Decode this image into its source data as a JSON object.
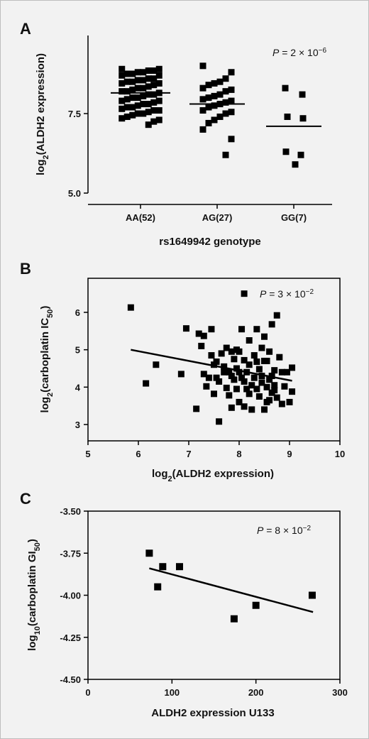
{
  "chart_data": [
    {
      "panel": "A",
      "type": "scatter",
      "xlabel": "rs1649942 genotype",
      "ylabel_base": "log",
      "ylabel_sub": "2",
      "ylabel_rest": "(ALDH2 expression)",
      "pvalue": {
        "prefix": "P",
        "text": " = 2 × 10",
        "exp": "−6"
      },
      "categories": [
        "AA(52)",
        "AG(27)",
        "GG(7)"
      ],
      "y_ticks": [
        "5.0",
        "7.5"
      ],
      "y_tick_values": [
        5.0,
        7.5
      ],
      "ylim": [
        5.0,
        9.7
      ],
      "groups": [
        {
          "name": "AA(52)",
          "mean": 8.15,
          "points": [
            8.9,
            8.9,
            8.85,
            8.85,
            8.8,
            8.8,
            8.75,
            8.75,
            8.7,
            8.7,
            8.6,
            8.6,
            8.55,
            8.55,
            8.5,
            8.5,
            8.45,
            8.45,
            8.4,
            8.35,
            8.3,
            8.3,
            8.25,
            8.2,
            8.2,
            8.15,
            8.1,
            8.1,
            8.05,
            8.0,
            8.0,
            7.95,
            7.9,
            7.9,
            7.85,
            7.8,
            7.8,
            7.75,
            7.7,
            7.7,
            7.65,
            7.6,
            7.6,
            7.55,
            7.5,
            7.5,
            7.45,
            7.4,
            7.35,
            7.3,
            7.25,
            7.15
          ]
        },
        {
          "name": "AG(27)",
          "mean": 7.8,
          "points": [
            9.0,
            8.8,
            8.6,
            8.5,
            8.45,
            8.4,
            8.3,
            8.25,
            8.2,
            8.1,
            8.05,
            8.0,
            7.95,
            7.9,
            7.85,
            7.8,
            7.75,
            7.7,
            7.6,
            7.55,
            7.5,
            7.4,
            7.3,
            7.2,
            7.0,
            6.7,
            6.2
          ]
        },
        {
          "name": "GG(7)",
          "mean": 7.1,
          "points": [
            8.3,
            8.1,
            7.4,
            7.35,
            6.3,
            6.2,
            5.9
          ]
        }
      ]
    },
    {
      "panel": "B",
      "type": "scatter",
      "xlabel_base": "log",
      "xlabel_sub": "2",
      "xlabel_rest": "(ALDH2 expression)",
      "ylabel_base": "log",
      "ylabel_sub": "2",
      "ylabel_rest": "(carboplatin IC",
      "ylabel_sub2": "50",
      "ylabel_end": ")",
      "pvalue": {
        "prefix": "P",
        "text": " = 3 × 10",
        "exp": "−2"
      },
      "xlim": [
        5,
        10
      ],
      "ylim": [
        2.6,
        6.9
      ],
      "x_ticks": [
        "5",
        "6",
        "7",
        "8",
        "9",
        "10"
      ],
      "x_tick_values": [
        5,
        6,
        7,
        8,
        9,
        10
      ],
      "y_ticks": [
        "3",
        "4",
        "5",
        "6"
      ],
      "y_tick_values": [
        3,
        4,
        5,
        6
      ],
      "trendline": {
        "x": [
          5.85,
          9.05
        ],
        "y": [
          5.0,
          4.17
        ]
      },
      "points": [
        [
          5.85,
          6.13
        ],
        [
          6.15,
          4.1
        ],
        [
          6.35,
          4.6
        ],
        [
          6.85,
          4.35
        ],
        [
          6.95,
          5.57
        ],
        [
          7.15,
          3.42
        ],
        [
          7.2,
          5.43
        ],
        [
          7.3,
          5.37
        ],
        [
          7.3,
          4.35
        ],
        [
          7.35,
          4.02
        ],
        [
          7.4,
          4.25
        ],
        [
          7.45,
          4.85
        ],
        [
          7.45,
          5.55
        ],
        [
          7.5,
          3.82
        ],
        [
          7.5,
          4.6
        ],
        [
          7.55,
          4.25
        ],
        [
          7.6,
          3.08
        ],
        [
          7.6,
          4.15
        ],
        [
          7.65,
          4.9
        ],
        [
          7.7,
          4.4
        ],
        [
          7.7,
          4.55
        ],
        [
          7.75,
          3.98
        ],
        [
          7.75,
          5.05
        ],
        [
          7.8,
          3.78
        ],
        [
          7.8,
          4.4
        ],
        [
          7.85,
          3.45
        ],
        [
          7.85,
          4.95
        ],
        [
          7.9,
          4.2
        ],
        [
          7.9,
          4.75
        ],
        [
          7.95,
          3.95
        ],
        [
          7.95,
          4.5
        ],
        [
          8.0,
          3.6
        ],
        [
          8.0,
          4.95
        ],
        [
          8.05,
          4.25
        ],
        [
          8.05,
          5.55
        ],
        [
          8.1,
          3.48
        ],
        [
          8.1,
          4.72
        ],
        [
          8.1,
          6.5
        ],
        [
          8.15,
          3.95
        ],
        [
          8.15,
          4.4
        ],
        [
          8.2,
          4.6
        ],
        [
          8.2,
          5.25
        ],
        [
          8.25,
          3.4
        ],
        [
          8.25,
          4.05
        ],
        [
          8.3,
          4.25
        ],
        [
          8.3,
          4.85
        ],
        [
          8.35,
          3.95
        ],
        [
          8.35,
          5.55
        ],
        [
          8.4,
          4.48
        ],
        [
          8.4,
          3.75
        ],
        [
          8.45,
          4.3
        ],
        [
          8.45,
          5.05
        ],
        [
          8.5,
          3.4
        ],
        [
          8.5,
          4.7
        ],
        [
          8.55,
          3.6
        ],
        [
          8.55,
          4.0
        ],
        [
          8.6,
          4.2
        ],
        [
          8.6,
          4.95
        ],
        [
          8.65,
          3.85
        ],
        [
          8.65,
          5.68
        ],
        [
          8.7,
          4.45
        ],
        [
          8.75,
          3.72
        ],
        [
          8.75,
          5.92
        ],
        [
          8.8,
          4.8
        ],
        [
          8.85,
          3.55
        ],
        [
          8.85,
          4.4
        ],
        [
          8.9,
          4.02
        ],
        [
          8.95,
          4.4
        ],
        [
          9.0,
          3.6
        ],
        [
          9.05,
          3.88
        ],
        [
          9.05,
          4.52
        ],
        [
          8.55,
          4.7
        ],
        [
          7.25,
          5.1
        ],
        [
          7.55,
          4.68
        ],
        [
          8.45,
          4.12
        ],
        [
          8.65,
          4.3
        ],
        [
          8.7,
          3.92
        ],
        [
          8.5,
          5.35
        ],
        [
          8.2,
          3.82
        ],
        [
          7.95,
          5.0
        ],
        [
          8.35,
          4.68
        ],
        [
          7.85,
          4.3
        ],
        [
          8.7,
          4.05
        ],
        [
          8.1,
          4.15
        ],
        [
          8.0,
          4.4
        ],
        [
          8.6,
          3.65
        ]
      ]
    },
    {
      "panel": "C",
      "type": "scatter",
      "xlabel": "ALDH2 expression U133",
      "ylabel_base": "log",
      "ylabel_sub": "10",
      "ylabel_rest": "(carboplatin GI",
      "ylabel_sub2": "50",
      "ylabel_end": ")",
      "pvalue": {
        "prefix": "P",
        "text": " = 8 × 10",
        "exp": "−2"
      },
      "xlim": [
        0,
        300
      ],
      "ylim": [
        -4.5,
        -3.5
      ],
      "x_ticks": [
        "0",
        "100",
        "200",
        "300"
      ],
      "x_tick_values": [
        0,
        100,
        200,
        300
      ],
      "y_ticks": [
        "-3.50",
        "-3.75",
        "-4.00",
        "-4.25",
        "-4.50"
      ],
      "y_tick_values": [
        -3.5,
        -3.75,
        -4.0,
        -4.25,
        -4.5
      ],
      "trendline": {
        "x": [
          73,
          268
        ],
        "y": [
          -3.84,
          -4.1
        ]
      },
      "points": [
        [
          73,
          -3.75
        ],
        [
          83,
          -3.95
        ],
        [
          89,
          -3.83
        ],
        [
          109,
          -3.83
        ],
        [
          174,
          -4.14
        ],
        [
          200,
          -4.06
        ],
        [
          267,
          -4.0
        ]
      ]
    }
  ],
  "panels": {
    "a": {
      "letter": "A"
    },
    "b": {
      "letter": "B"
    },
    "c": {
      "letter": "C"
    }
  }
}
